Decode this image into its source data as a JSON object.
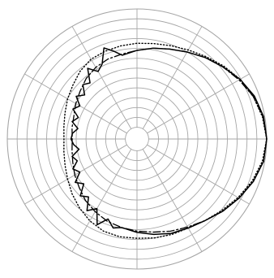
{
  "chart_data": {
    "type": "line",
    "projection": "polar",
    "angular_axis": {
      "units": "degrees",
      "zero_direction": "right",
      "direction": "counterclockwise",
      "spoke_step": 30
    },
    "radial_axis": {
      "range": [
        0,
        1
      ],
      "ring_step": 0.0833,
      "hole_fraction": 0.09,
      "grid": true
    },
    "grid": true,
    "legend": "none",
    "series": [
      {
        "style": "solid",
        "color": "#000000",
        "theta": [
          0,
          10,
          20,
          30,
          40,
          50,
          60,
          70,
          80,
          90,
          100,
          105,
          110,
          115,
          120,
          125,
          130,
          135,
          140,
          145,
          150,
          155,
          160,
          165,
          170,
          175,
          180,
          185,
          190,
          195,
          200,
          205,
          210,
          215,
          220,
          225,
          230,
          235,
          240,
          245,
          250,
          255,
          260,
          270,
          280,
          290,
          300,
          310,
          320,
          330,
          340,
          350,
          360
        ],
        "r": [
          1.0,
          0.99,
          0.96,
          0.91,
          0.85,
          0.8,
          0.75,
          0.71,
          0.68,
          0.65,
          0.62,
          0.67,
          0.72,
          0.6,
          0.56,
          0.63,
          0.52,
          0.55,
          0.48,
          0.53,
          0.46,
          0.5,
          0.43,
          0.47,
          0.41,
          0.45,
          0.46,
          0.44,
          0.4,
          0.47,
          0.44,
          0.5,
          0.46,
          0.54,
          0.49,
          0.58,
          0.54,
          0.64,
          0.58,
          0.7,
          0.62,
          0.68,
          0.66,
          0.69,
          0.72,
          0.75,
          0.77,
          0.8,
          0.85,
          0.9,
          0.95,
          0.99,
          1.0
        ]
      },
      {
        "style": "dashed",
        "color": "#000000",
        "theta": [
          0,
          10,
          20,
          30,
          40,
          50,
          60,
          70,
          80,
          90,
          100,
          110,
          120,
          130,
          140,
          150,
          160,
          170,
          180,
          190,
          200,
          210,
          220,
          230,
          240,
          250,
          260,
          270,
          280,
          290,
          300,
          310,
          320,
          330,
          340,
          350,
          360
        ],
        "r": [
          1.0,
          0.985,
          0.95,
          0.9,
          0.85,
          0.8,
          0.75,
          0.71,
          0.68,
          0.65,
          0.63,
          0.62,
          0.6,
          0.57,
          0.53,
          0.5,
          0.47,
          0.46,
          0.45,
          0.46,
          0.48,
          0.51,
          0.54,
          0.58,
          0.61,
          0.64,
          0.66,
          0.68,
          0.7,
          0.73,
          0.76,
          0.8,
          0.85,
          0.9,
          0.95,
          0.99,
          1.0
        ]
      },
      {
        "style": "dotted",
        "color": "#000000",
        "theta": [
          0,
          10,
          20,
          30,
          40,
          50,
          60,
          70,
          80,
          90,
          100,
          110,
          120,
          130,
          140,
          150,
          160,
          170,
          180,
          190,
          200,
          210,
          220,
          230,
          240,
          250,
          260,
          270,
          280,
          290,
          300,
          310,
          320,
          330,
          340,
          350,
          360
        ],
        "r": [
          1.0,
          0.98,
          0.95,
          0.91,
          0.86,
          0.81,
          0.77,
          0.74,
          0.72,
          0.71,
          0.7,
          0.69,
          0.68,
          0.65,
          0.61,
          0.58,
          0.55,
          0.53,
          0.52,
          0.53,
          0.55,
          0.58,
          0.62,
          0.66,
          0.7,
          0.73,
          0.74,
          0.74,
          0.75,
          0.76,
          0.77,
          0.8,
          0.84,
          0.89,
          0.94,
          0.98,
          1.0
        ]
      }
    ]
  }
}
